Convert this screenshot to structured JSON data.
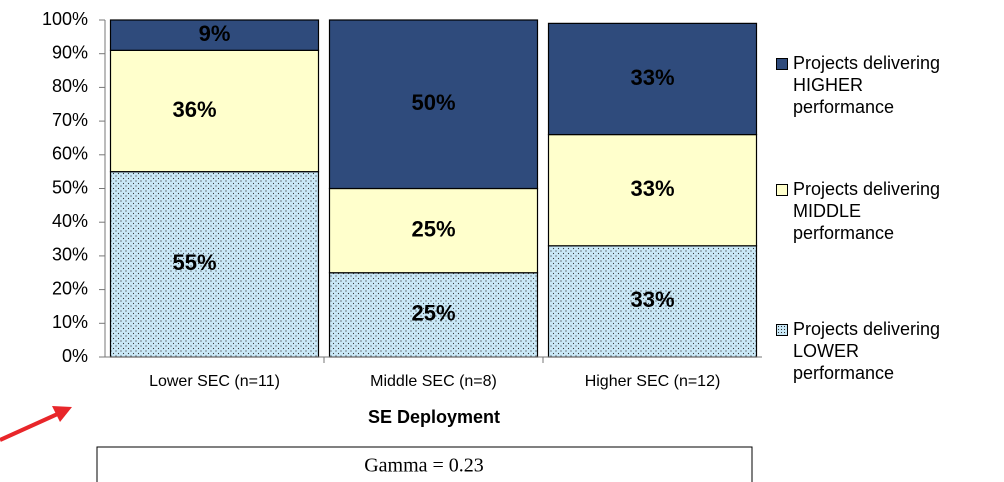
{
  "chart_data": {
    "type": "stacked_bar",
    "categories": [
      "Lower SEC (n=11)",
      "Middle SEC (n=8)",
      "Higher SEC (n=12)"
    ],
    "series": [
      {
        "name": "Projects delivering LOWER performance",
        "color": "#c9e8f7",
        "pattern": "dots",
        "values": [
          55,
          25,
          33
        ],
        "value_labels": [
          "55%",
          "25%",
          "33%"
        ]
      },
      {
        "name": "Projects delivering MIDDLE performance",
        "color": "#ffffcc",
        "values": [
          36,
          25,
          33
        ],
        "value_labels": [
          "36%",
          "25%",
          "33%"
        ]
      },
      {
        "name": "Projects delivering HIGHER performance",
        "color": "#2f4b7c",
        "values": [
          9,
          50,
          33
        ],
        "value_labels": [
          "9%",
          "50%",
          "33%"
        ]
      }
    ],
    "xlabel": "SE Deployment",
    "ylim": [
      0,
      100
    ],
    "yticks": [
      {
        "value": 0,
        "label": "0%"
      },
      {
        "value": 10,
        "label": "10%"
      },
      {
        "value": 20,
        "label": "20%"
      },
      {
        "value": 30,
        "label": "30%"
      },
      {
        "value": 40,
        "label": "40%"
      },
      {
        "value": 50,
        "label": "50%"
      },
      {
        "value": 60,
        "label": "60%"
      },
      {
        "value": 70,
        "label": "70%"
      },
      {
        "value": 80,
        "label": "80%"
      },
      {
        "value": 90,
        "label": "90%"
      },
      {
        "value": 100,
        "label": "100%"
      }
    ],
    "legend": "right",
    "annotation": "Gamma = 0.23"
  }
}
